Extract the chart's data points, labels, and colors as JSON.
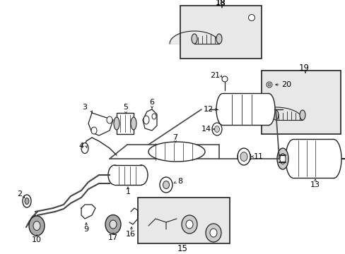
{
  "bg_color": "#ffffff",
  "fig_width": 4.89,
  "fig_height": 3.6,
  "dpi": 100,
  "image_data_b64": ""
}
